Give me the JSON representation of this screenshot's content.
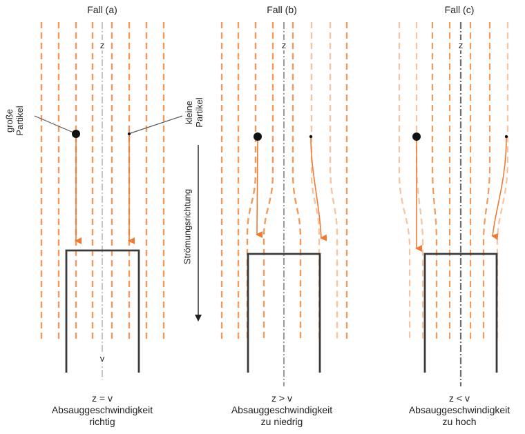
{
  "panels": [
    {
      "id": "a",
      "title": "Fall (a)",
      "z_label": "z",
      "v_label": "v",
      "relation": "z = v",
      "caption_line1": "Absauggeschwindigkeit",
      "caption_line2": "richtig"
    },
    {
      "id": "b",
      "title": "Fall (b)",
      "z_label": "z",
      "relation": "z > v",
      "caption_line1": "Absauggeschwindigkeit",
      "caption_line2": "zu niedrig"
    },
    {
      "id": "c",
      "title": "Fall (c)",
      "z_label": "z",
      "relation": "z < v",
      "caption_line1": "Absauggeschwindigkeit",
      "caption_line2": "zu hoch"
    }
  ],
  "labels": {
    "large_particle": [
      "große",
      "Partikel"
    ],
    "small_particle": [
      "kleine",
      "Partikel"
    ],
    "flow_direction": "Strömungsrichtung"
  },
  "colors": {
    "streamline": "#f29a5c",
    "streamline_faint": "#f7c3a0",
    "trajectory": "#ef7a35",
    "probe": "#3a3a3a",
    "axis": "#9a9a9a",
    "particle": "#111111"
  }
}
